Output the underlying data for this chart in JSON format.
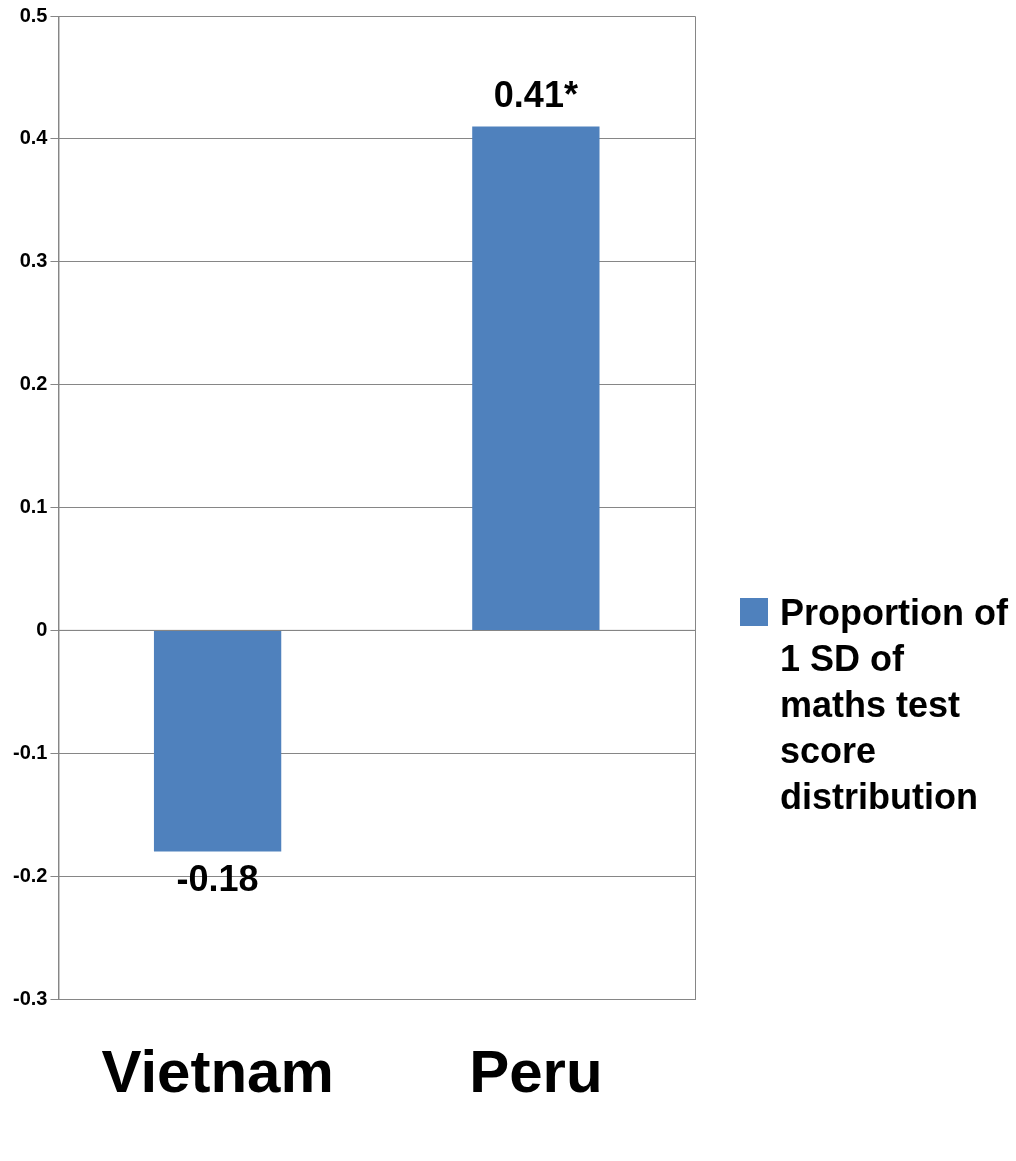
{
  "chart_data": {
    "type": "bar",
    "categories": [
      "Vietnam",
      "Peru"
    ],
    "series": [
      {
        "name": "Proportion of 1 SD of maths test score distribution",
        "color": "#4f81bd",
        "values": [
          -0.18,
          0.41
        ],
        "value_labels": [
          "-0.18",
          "0.41*"
        ]
      }
    ],
    "ylim": [
      -0.3,
      0.5
    ],
    "yticks": [
      -0.3,
      -0.2,
      -0.1,
      0,
      0.1,
      0.2,
      0.3,
      0.4,
      0.5
    ],
    "grid": "y",
    "legend": "right"
  }
}
